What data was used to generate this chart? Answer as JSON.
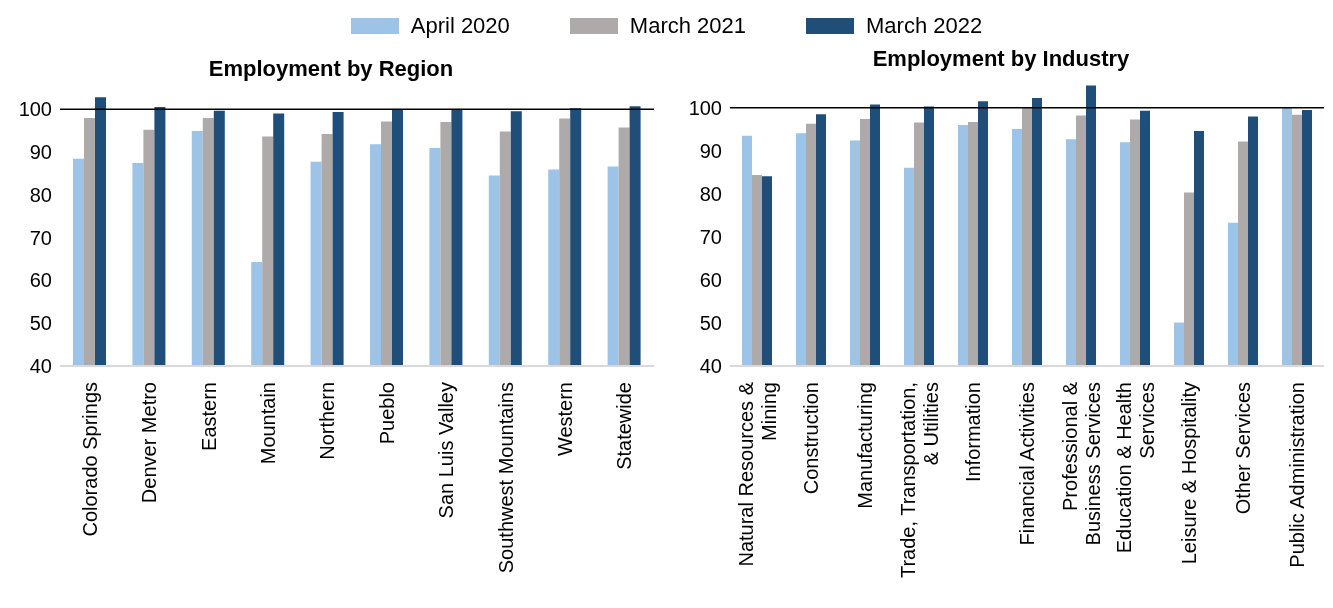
{
  "chart_data": [
    {
      "type": "bar",
      "title": "Employment by Region",
      "legend": "top",
      "categories": [
        "Colorado Springs",
        "Denver Metro",
        "Eastern",
        "Mountain",
        "Northern",
        "Pueblo",
        "San Luis Valley",
        "Southwest Mountains",
        "Western",
        "Statewide"
      ],
      "series": [
        {
          "name": "April 2020",
          "color": "#9dc3e6",
          "values": [
            88.4,
            87.4,
            94.9,
            64.3,
            87.7,
            91.8,
            90.9,
            84.5,
            85.9,
            86.6
          ]
        },
        {
          "name": "March 2021",
          "color": "#aeaaaa",
          "values": [
            97.9,
            95.2,
            97.9,
            93.6,
            94.2,
            97.1,
            97.0,
            94.8,
            97.8,
            95.7
          ]
        },
        {
          "name": "March 2022",
          "color": "#1f4e79",
          "values": [
            102.8,
            100.5,
            99.6,
            99.0,
            99.3,
            100.0,
            100.0,
            99.5,
            100.2,
            100.7
          ]
        }
      ],
      "ylim": [
        40,
        104
      ],
      "yticks": [
        40,
        50,
        60,
        70,
        80,
        90,
        100
      ],
      "ref_lines": [
        {
          "axis": "y",
          "value": 100,
          "color": "#000000"
        }
      ]
    },
    {
      "type": "bar",
      "title": "Employment by Industry",
      "legend": "top",
      "categories": [
        "Natural Resources & Mining",
        "Construction",
        "Manufacturing",
        "Trade, Transportation, & Utilities",
        "Information",
        "Financial Activities",
        "Professional & Business Services",
        "Education & Health Services",
        "Leisure & Hospitality",
        "Other Services",
        "Public Administration"
      ],
      "series": [
        {
          "name": "April 2020",
          "color": "#9dc3e6",
          "values": [
            93.5,
            94.1,
            92.4,
            86.1,
            96.0,
            95.1,
            92.7,
            92.0,
            50.1,
            73.3,
            100.2
          ]
        },
        {
          "name": "March 2021",
          "color": "#aeaaaa",
          "values": [
            84.4,
            96.3,
            97.4,
            96.6,
            96.7,
            100.0,
            98.2,
            97.3,
            80.3,
            92.2,
            98.4
          ]
        },
        {
          "name": "March 2022",
          "color": "#1f4e79",
          "values": [
            84.1,
            98.5,
            100.8,
            100.3,
            101.5,
            102.3,
            105.2,
            99.3,
            94.6,
            98.0,
            99.5
          ]
        }
      ],
      "ylim": [
        40,
        106
      ],
      "yticks": [
        40,
        50,
        60,
        70,
        80,
        90,
        100
      ],
      "ref_lines": [
        {
          "axis": "y",
          "value": 100,
          "color": "#000000"
        }
      ]
    }
  ]
}
